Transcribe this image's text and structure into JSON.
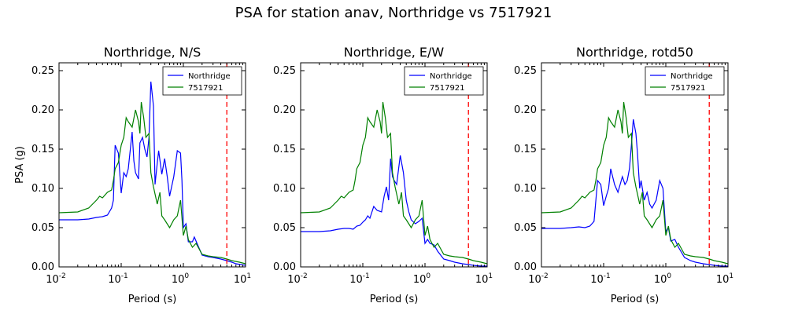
{
  "figure": {
    "suptitle": "PSA for station anav, Northridge vs 7517921"
  },
  "colors": {
    "Northridge": "#0000ff",
    "7517921": "#008000",
    "cutoff": "#ff0000"
  },
  "chart_data": [
    {
      "type": "line",
      "title": "Northridge, N/S",
      "xlabel": "Period (s)",
      "ylabel": "PSA (g)",
      "xscale": "log",
      "xlim": [
        0.01,
        10
      ],
      "ylim": [
        0,
        0.26
      ],
      "x_ticks": [
        "10^-2",
        "10^-1",
        "10^0",
        "10^1"
      ],
      "y_ticks": [
        "0.00",
        "0.05",
        "0.10",
        "0.15",
        "0.20",
        "0.25"
      ],
      "legend": {
        "location": "upper right",
        "entries": [
          "Northridge",
          "7517921"
        ]
      },
      "cutoff_period": 5,
      "series": [
        {
          "name": "Northridge",
          "x": [
            0.01,
            0.02,
            0.03,
            0.04,
            0.05,
            0.06,
            0.07,
            0.075,
            0.08,
            0.09,
            0.1,
            0.11,
            0.12,
            0.13,
            0.15,
            0.16,
            0.17,
            0.19,
            0.2,
            0.22,
            0.24,
            0.26,
            0.28,
            0.3,
            0.33,
            0.35,
            0.38,
            0.4,
            0.45,
            0.5,
            0.55,
            0.6,
            0.7,
            0.8,
            0.9,
            0.95,
            1.0,
            1.1,
            1.2,
            1.4,
            1.5,
            1.7,
            2.0,
            2.5,
            3.0,
            4.0,
            5.0,
            6.0,
            7.0,
            10.0
          ],
          "y": [
            0.06,
            0.06,
            0.061,
            0.063,
            0.064,
            0.066,
            0.075,
            0.085,
            0.155,
            0.145,
            0.094,
            0.12,
            0.115,
            0.125,
            0.172,
            0.135,
            0.12,
            0.112,
            0.158,
            0.165,
            0.15,
            0.14,
            0.165,
            0.236,
            0.205,
            0.105,
            0.132,
            0.148,
            0.118,
            0.138,
            0.115,
            0.09,
            0.115,
            0.148,
            0.145,
            0.11,
            0.05,
            0.055,
            0.032,
            0.032,
            0.038,
            0.028,
            0.015,
            0.013,
            0.012,
            0.01,
            0.008,
            0.006,
            0.004,
            0.002
          ]
        },
        {
          "name": "7517921",
          "x": [
            0.01,
            0.02,
            0.03,
            0.04,
            0.045,
            0.05,
            0.06,
            0.07,
            0.075,
            0.08,
            0.09,
            0.1,
            0.11,
            0.12,
            0.13,
            0.15,
            0.17,
            0.19,
            0.2,
            0.21,
            0.23,
            0.25,
            0.28,
            0.3,
            0.33,
            0.38,
            0.42,
            0.45,
            0.5,
            0.6,
            0.7,
            0.8,
            0.9,
            1.0,
            1.1,
            1.2,
            1.4,
            1.6,
            2.0,
            2.5,
            3.0,
            4.0,
            5.0,
            6.0,
            8.0,
            10.0
          ],
          "y": [
            0.069,
            0.07,
            0.075,
            0.085,
            0.09,
            0.088,
            0.095,
            0.098,
            0.11,
            0.125,
            0.133,
            0.155,
            0.165,
            0.19,
            0.185,
            0.178,
            0.2,
            0.185,
            0.17,
            0.21,
            0.19,
            0.165,
            0.17,
            0.12,
            0.102,
            0.08,
            0.095,
            0.065,
            0.06,
            0.05,
            0.06,
            0.065,
            0.085,
            0.04,
            0.052,
            0.035,
            0.025,
            0.03,
            0.016,
            0.014,
            0.013,
            0.012,
            0.01,
            0.008,
            0.006,
            0.004
          ]
        }
      ]
    },
    {
      "type": "line",
      "title": "Northridge, E/W",
      "xlabel": "Period (s)",
      "ylabel": "",
      "xscale": "log",
      "xlim": [
        0.01,
        10
      ],
      "ylim": [
        0,
        0.26
      ],
      "x_ticks": [
        "10^-2",
        "10^-1",
        "10^0",
        "10^1"
      ],
      "y_ticks": [
        "0.00",
        "0.05",
        "0.10",
        "0.15",
        "0.20",
        "0.25"
      ],
      "legend": {
        "location": "upper right",
        "entries": [
          "Northridge",
          "7517921"
        ]
      },
      "cutoff_period": 5,
      "series": [
        {
          "name": "Northridge",
          "x": [
            0.01,
            0.02,
            0.03,
            0.04,
            0.05,
            0.06,
            0.07,
            0.08,
            0.09,
            0.1,
            0.11,
            0.12,
            0.13,
            0.15,
            0.17,
            0.2,
            0.22,
            0.24,
            0.26,
            0.28,
            0.3,
            0.32,
            0.35,
            0.4,
            0.45,
            0.5,
            0.55,
            0.6,
            0.7,
            0.8,
            0.9,
            1.0,
            1.1,
            1.2,
            1.4,
            1.6,
            2.0,
            2.5,
            3.0,
            4.0,
            5.0,
            6.0,
            8.0,
            10.0
          ],
          "y": [
            0.045,
            0.045,
            0.046,
            0.048,
            0.049,
            0.049,
            0.048,
            0.052,
            0.053,
            0.057,
            0.06,
            0.065,
            0.062,
            0.077,
            0.072,
            0.07,
            0.09,
            0.102,
            0.085,
            0.138,
            0.115,
            0.11,
            0.105,
            0.142,
            0.12,
            0.085,
            0.07,
            0.06,
            0.055,
            0.058,
            0.062,
            0.03,
            0.035,
            0.03,
            0.028,
            0.02,
            0.01,
            0.008,
            0.006,
            0.004,
            0.003,
            0.002,
            0.001,
            0.001
          ]
        },
        {
          "name": "7517921",
          "x": [
            0.01,
            0.02,
            0.03,
            0.04,
            0.045,
            0.05,
            0.06,
            0.07,
            0.075,
            0.08,
            0.09,
            0.1,
            0.11,
            0.12,
            0.13,
            0.15,
            0.17,
            0.19,
            0.2,
            0.21,
            0.23,
            0.25,
            0.28,
            0.3,
            0.33,
            0.38,
            0.42,
            0.45,
            0.5,
            0.6,
            0.7,
            0.8,
            0.9,
            1.0,
            1.1,
            1.2,
            1.4,
            1.6,
            2.0,
            2.5,
            3.0,
            4.0,
            5.0,
            6.0,
            8.0,
            10.0
          ],
          "y": [
            0.069,
            0.07,
            0.075,
            0.085,
            0.09,
            0.088,
            0.095,
            0.098,
            0.11,
            0.125,
            0.133,
            0.155,
            0.165,
            0.19,
            0.185,
            0.178,
            0.2,
            0.185,
            0.17,
            0.21,
            0.19,
            0.165,
            0.17,
            0.12,
            0.102,
            0.08,
            0.095,
            0.065,
            0.06,
            0.05,
            0.06,
            0.065,
            0.085,
            0.04,
            0.052,
            0.035,
            0.025,
            0.03,
            0.016,
            0.014,
            0.013,
            0.012,
            0.01,
            0.008,
            0.006,
            0.004
          ]
        }
      ]
    },
    {
      "type": "line",
      "title": "Northridge, rotd50",
      "xlabel": "Period (s)",
      "ylabel": "",
      "xscale": "log",
      "xlim": [
        0.01,
        10
      ],
      "ylim": [
        0,
        0.26
      ],
      "x_ticks": [
        "10^-2",
        "10^-1",
        "10^0",
        "10^1"
      ],
      "y_ticks": [
        "0.00",
        "0.05",
        "0.10",
        "0.15",
        "0.20",
        "0.25"
      ],
      "legend": {
        "location": "upper right",
        "entries": [
          "Northridge",
          "7517921"
        ]
      },
      "cutoff_period": 5,
      "series": [
        {
          "name": "Northridge",
          "x": [
            0.01,
            0.02,
            0.03,
            0.04,
            0.05,
            0.06,
            0.07,
            0.08,
            0.09,
            0.1,
            0.11,
            0.12,
            0.13,
            0.15,
            0.17,
            0.2,
            0.22,
            0.24,
            0.26,
            0.28,
            0.3,
            0.33,
            0.35,
            0.38,
            0.4,
            0.45,
            0.5,
            0.55,
            0.6,
            0.7,
            0.8,
            0.9,
            1.0,
            1.1,
            1.2,
            1.4,
            1.6,
            2.0,
            2.5,
            3.0,
            4.0,
            5.0,
            6.0,
            8.0,
            10.0
          ],
          "y": [
            0.049,
            0.049,
            0.05,
            0.051,
            0.05,
            0.052,
            0.058,
            0.11,
            0.105,
            0.078,
            0.09,
            0.1,
            0.125,
            0.105,
            0.095,
            0.115,
            0.105,
            0.11,
            0.125,
            0.155,
            0.188,
            0.17,
            0.145,
            0.1,
            0.11,
            0.085,
            0.095,
            0.08,
            0.075,
            0.085,
            0.11,
            0.1,
            0.045,
            0.05,
            0.033,
            0.035,
            0.025,
            0.012,
            0.008,
            0.006,
            0.004,
            0.003,
            0.002,
            0.001,
            0.001
          ]
        },
        {
          "name": "7517921",
          "x": [
            0.01,
            0.02,
            0.03,
            0.04,
            0.045,
            0.05,
            0.06,
            0.07,
            0.075,
            0.08,
            0.09,
            0.1,
            0.11,
            0.12,
            0.13,
            0.15,
            0.17,
            0.19,
            0.2,
            0.21,
            0.23,
            0.25,
            0.28,
            0.3,
            0.33,
            0.38,
            0.42,
            0.45,
            0.5,
            0.6,
            0.7,
            0.8,
            0.9,
            1.0,
            1.1,
            1.2,
            1.4,
            1.6,
            2.0,
            2.5,
            3.0,
            4.0,
            5.0,
            6.0,
            8.0,
            10.0
          ],
          "y": [
            0.069,
            0.07,
            0.075,
            0.085,
            0.09,
            0.088,
            0.095,
            0.098,
            0.11,
            0.125,
            0.133,
            0.155,
            0.165,
            0.19,
            0.185,
            0.178,
            0.2,
            0.185,
            0.17,
            0.21,
            0.19,
            0.165,
            0.17,
            0.12,
            0.102,
            0.08,
            0.095,
            0.065,
            0.06,
            0.05,
            0.06,
            0.065,
            0.085,
            0.04,
            0.052,
            0.035,
            0.025,
            0.03,
            0.016,
            0.014,
            0.013,
            0.012,
            0.01,
            0.008,
            0.006,
            0.004
          ]
        }
      ]
    }
  ]
}
